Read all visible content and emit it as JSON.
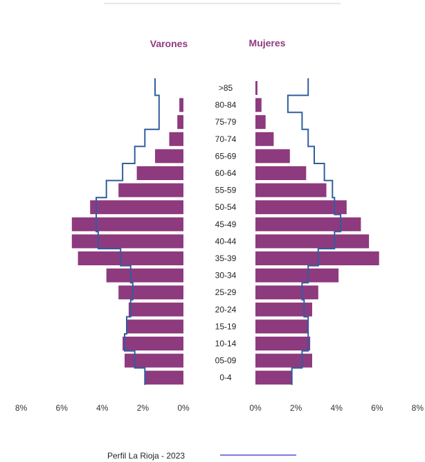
{
  "chart_data": {
    "type": "bar",
    "orientation": "horizontal-pyramid",
    "left_title": "Varones",
    "right_title": "Mujeres",
    "categories": [
      ">85",
      "80-84",
      "75-79",
      "70-74",
      "65-69",
      "60-64",
      "55-59",
      "50-54",
      "45-49",
      "40-44",
      "35-39",
      "30-34",
      "25-29",
      "20-24",
      "15-19",
      "10-14",
      "05-09",
      "0-4"
    ],
    "series": [
      {
        "side": "left",
        "color": "#8e3a7e",
        "values": [
          0.0,
          0.2,
          0.3,
          0.7,
          1.4,
          2.3,
          3.2,
          4.6,
          5.5,
          5.5,
          5.2,
          3.8,
          3.2,
          2.7,
          2.8,
          3.0,
          2.9,
          1.9
        ]
      },
      {
        "side": "right",
        "color": "#8e3a7e",
        "values": [
          0.1,
          0.3,
          0.5,
          0.9,
          1.7,
          2.5,
          3.5,
          4.5,
          5.2,
          5.6,
          6.1,
          4.1,
          3.1,
          2.8,
          2.6,
          2.7,
          2.8,
          1.8
        ]
      },
      {
        "name": "Perfil La Rioja - 2023",
        "side": "left",
        "style": "step-line",
        "color": "#2f5e9e",
        "values": [
          1.4,
          1.2,
          1.2,
          1.9,
          2.4,
          3.0,
          3.8,
          4.3,
          4.3,
          4.2,
          3.1,
          2.6,
          2.5,
          2.6,
          2.8,
          2.9,
          2.4,
          1.9
        ]
      },
      {
        "name": "Perfil La Rioja - 2023",
        "side": "right",
        "style": "step-line",
        "color": "#2f5e9e",
        "values": [
          2.6,
          1.6,
          2.3,
          2.6,
          2.9,
          3.4,
          3.8,
          3.9,
          4.2,
          3.9,
          3.1,
          2.6,
          2.3,
          2.4,
          2.6,
          2.6,
          2.3,
          1.8
        ]
      }
    ],
    "xlim": [
      0,
      8
    ],
    "x_ticks_left": [
      "8%",
      "6%",
      "4%",
      "2%",
      "0%"
    ],
    "x_ticks_right": [
      "0%",
      "2%",
      "4%",
      "6%",
      "8%"
    ],
    "grid": false,
    "legend": {
      "label": "Perfil La Rioja - 2023",
      "position": "bottom"
    }
  }
}
